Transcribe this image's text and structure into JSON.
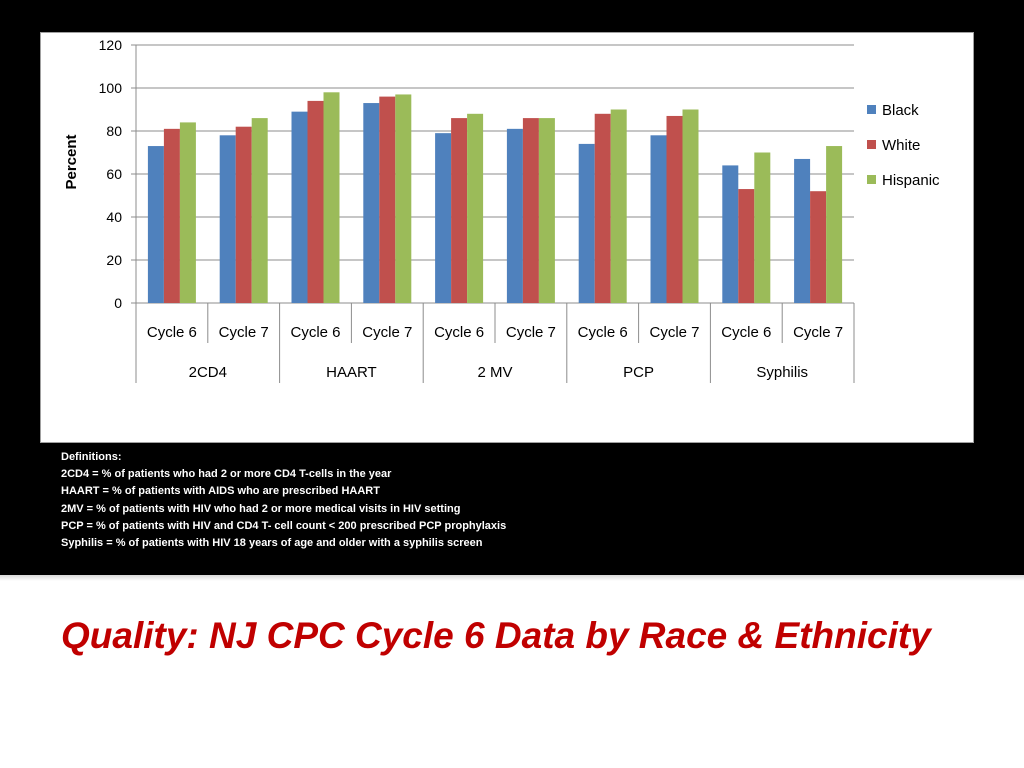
{
  "chart_data": {
    "type": "bar",
    "title": "",
    "xlabel": "",
    "ylabel": "Percent",
    "ylim": [
      0,
      120
    ],
    "yticks": [
      0,
      20,
      40,
      60,
      80,
      100,
      120
    ],
    "grid": true,
    "legend_position": "right",
    "groups": [
      {
        "label": "2CD4",
        "categories": [
          "Cycle 6",
          "Cycle 7"
        ]
      },
      {
        "label": "HAART",
        "categories": [
          "Cycle 6",
          "Cycle 7"
        ]
      },
      {
        "label": "2 MV",
        "categories": [
          "Cycle 6",
          "Cycle 7"
        ]
      },
      {
        "label": "PCP",
        "categories": [
          "Cycle 6",
          "Cycle 7"
        ]
      },
      {
        "label": "Syphilis",
        "categories": [
          "Cycle 6",
          "Cycle 7"
        ]
      }
    ],
    "series": [
      {
        "name": "Black",
        "color": "#4f81bd",
        "values": [
          73,
          78,
          89,
          93,
          79,
          81,
          74,
          78,
          64,
          67
        ]
      },
      {
        "name": "White",
        "color": "#c0504d",
        "values": [
          81,
          82,
          94,
          96,
          86,
          86,
          88,
          87,
          53,
          52
        ]
      },
      {
        "name": "Hispanic",
        "color": "#9bbb59",
        "values": [
          84,
          86,
          98,
          97,
          88,
          86,
          90,
          90,
          70,
          73
        ]
      }
    ]
  },
  "definitions": {
    "heading": "Definitions:",
    "lines": [
      "2CD4 = % of patients who had 2 or more CD4 T-cells in the year",
      "HAART = % of patients with AIDS who are prescribed HAART",
      "2MV = % of patients with HIV who had 2 or more medical visits in HIV setting",
      "PCP = % of patients with HIV and CD4 T- cell count < 200 prescribed PCP prophylaxis",
      "Syphilis = % of patients with HIV 18 years of age and older with a syphilis screen"
    ]
  },
  "slide": {
    "title": "Quality: NJ CPC Cycle 6 Data by Race & Ethnicity"
  },
  "colors": {
    "background_top": "#000000",
    "title": "#c00000"
  }
}
